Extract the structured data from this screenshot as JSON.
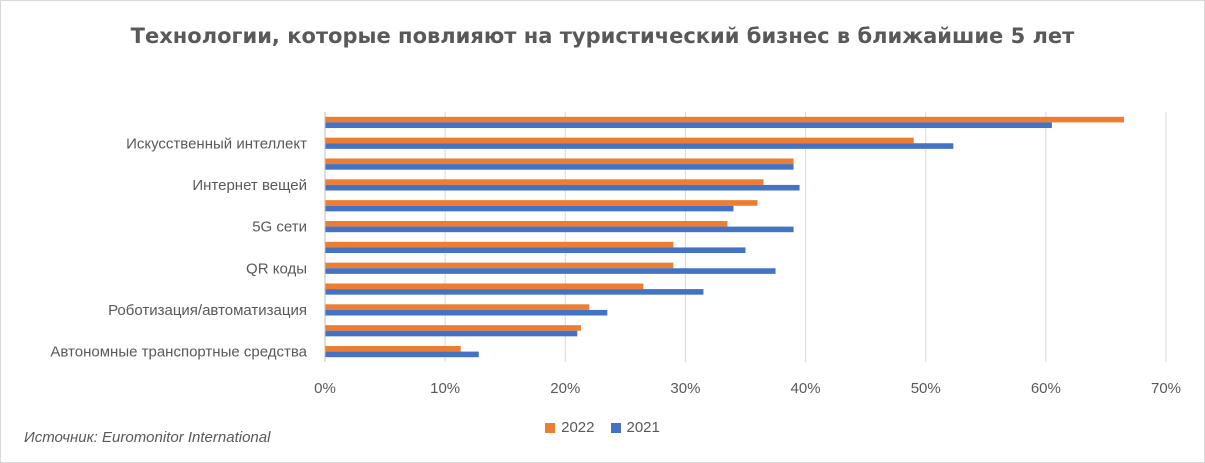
{
  "chart_data": {
    "type": "bar",
    "orientation": "horizontal",
    "title": "Технологии, которые повлияют на туристический бизнес в ближайшие 5 лет",
    "categories": [
      "",
      "Искусственный интеллект",
      "",
      "Интернет вещей",
      "",
      "5G сети",
      "",
      "QR коды",
      "",
      "Роботизация/автоматизация",
      "",
      "Автономные транспортные средства"
    ],
    "series": [
      {
        "name": "2022",
        "color": "#ed7d31",
        "values": [
          66.5,
          49.0,
          39.0,
          36.5,
          36.0,
          33.5,
          29.0,
          29.0,
          26.5,
          22.0,
          21.3,
          11.3
        ]
      },
      {
        "name": "2021",
        "color": "#4472c4",
        "values": [
          60.5,
          52.3,
          39.0,
          39.5,
          34.0,
          39.0,
          35.0,
          37.5,
          31.5,
          23.5,
          21.0,
          12.8
        ]
      }
    ],
    "xlim": [
      0,
      70
    ],
    "xticks": [
      "0%",
      "10%",
      "20%",
      "30%",
      "40%",
      "50%",
      "60%",
      "70%"
    ],
    "grid": true,
    "legend": "bottom"
  },
  "source": "Источник: Euromonitor International"
}
